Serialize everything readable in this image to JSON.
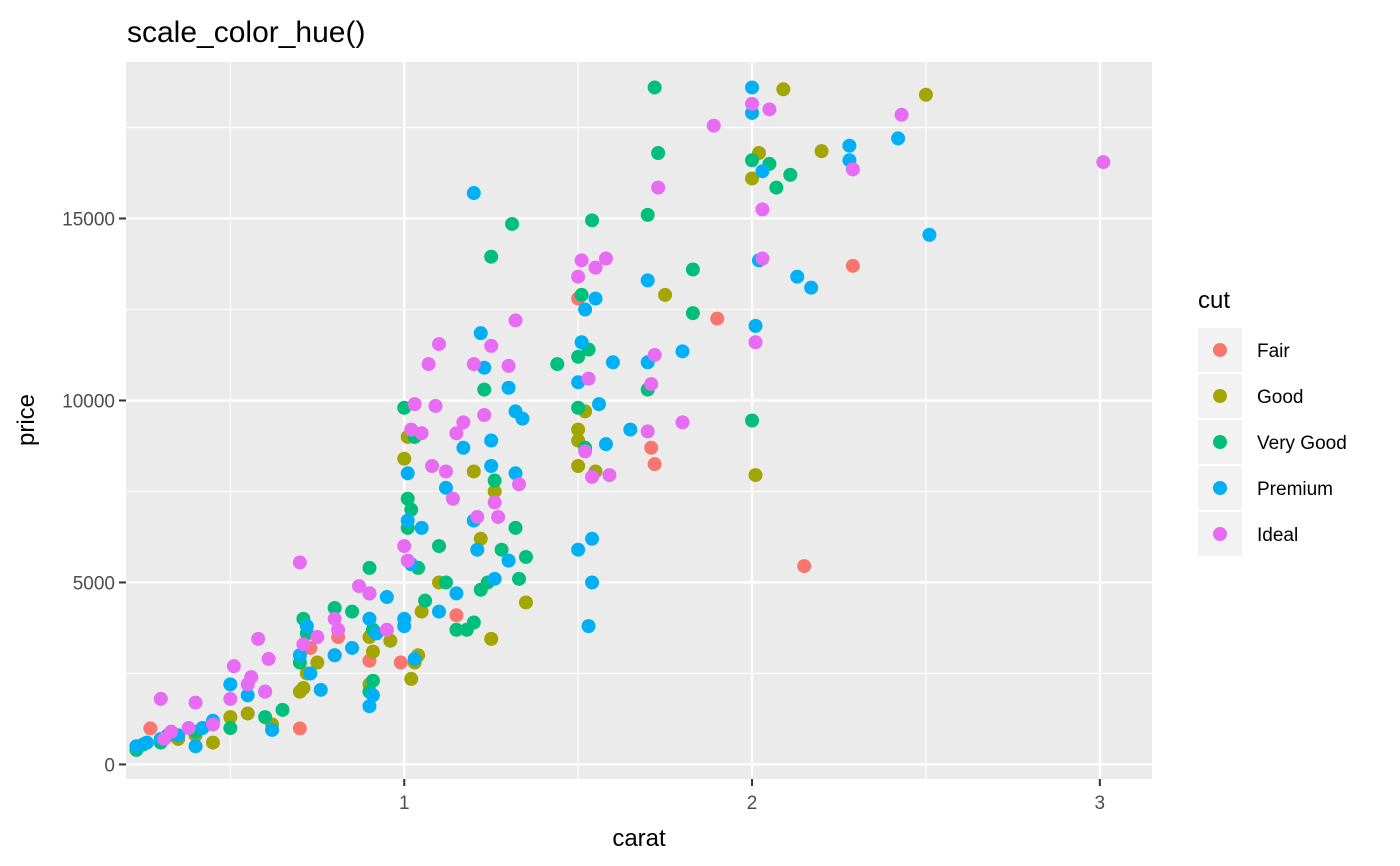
{
  "chart_data": {
    "type": "scatter",
    "title": "scale_color_hue()",
    "xlabel": "carat",
    "ylabel": "price",
    "xlim": [
      0.2,
      3.15
    ],
    "ylim": [
      -400,
      19300
    ],
    "x_ticks": [
      1,
      2,
      3
    ],
    "y_ticks": [
      0,
      5000,
      10000,
      15000
    ],
    "grid": true,
    "legend": {
      "title": "cut",
      "position": "right"
    },
    "series": [
      {
        "name": "Fair",
        "color": "#F8766D",
        "points": [
          [
            0.27,
            990
          ],
          [
            0.34,
            780
          ],
          [
            0.9,
            2850
          ],
          [
            0.99,
            2800
          ],
          [
            0.7,
            990
          ],
          [
            0.9,
            4000
          ],
          [
            1.5,
            12800
          ],
          [
            1.9,
            12250
          ],
          [
            2.29,
            13700
          ],
          [
            1.71,
            8700
          ],
          [
            1.72,
            8250
          ],
          [
            2.15,
            5450
          ],
          [
            1.15,
            4100
          ],
          [
            0.81,
            3500
          ],
          [
            0.73,
            3200
          ]
        ]
      },
      {
        "name": "Good",
        "color": "#A3A500",
        "points": [
          [
            0.3,
            650
          ],
          [
            0.35,
            700
          ],
          [
            0.4,
            800
          ],
          [
            0.45,
            600
          ],
          [
            0.5,
            1300
          ],
          [
            0.55,
            1400
          ],
          [
            0.62,
            1100
          ],
          [
            0.7,
            2000
          ],
          [
            0.71,
            2100
          ],
          [
            0.72,
            2500
          ],
          [
            0.75,
            2800
          ],
          [
            0.8,
            3000
          ],
          [
            0.9,
            2200
          ],
          [
            0.9,
            3500
          ],
          [
            0.91,
            3100
          ],
          [
            0.96,
            3400
          ],
          [
            1.0,
            8400
          ],
          [
            1.01,
            9000
          ],
          [
            1.02,
            2350
          ],
          [
            1.03,
            2800
          ],
          [
            1.04,
            3000
          ],
          [
            1.05,
            4200
          ],
          [
            1.1,
            5000
          ],
          [
            1.2,
            8050
          ],
          [
            1.22,
            6200
          ],
          [
            1.25,
            3450
          ],
          [
            1.26,
            7500
          ],
          [
            1.35,
            4450
          ],
          [
            1.5,
            8200
          ],
          [
            1.5,
            8900
          ],
          [
            1.52,
            9700
          ],
          [
            1.55,
            8050
          ],
          [
            1.75,
            12900
          ],
          [
            2.0,
            16100
          ],
          [
            2.01,
            7950
          ],
          [
            2.02,
            16800
          ],
          [
            2.09,
            18550
          ],
          [
            2.2,
            16850
          ],
          [
            2.5,
            18400
          ],
          [
            1.5,
            9200
          ]
        ]
      },
      {
        "name": "Very Good",
        "color": "#00BF7D",
        "points": [
          [
            0.23,
            400
          ],
          [
            0.25,
            550
          ],
          [
            0.3,
            600
          ],
          [
            0.32,
            800
          ],
          [
            0.4,
            900
          ],
          [
            0.5,
            1000
          ],
          [
            0.6,
            1300
          ],
          [
            0.65,
            1500
          ],
          [
            0.7,
            2800
          ],
          [
            0.71,
            4000
          ],
          [
            0.72,
            3600
          ],
          [
            0.8,
            4300
          ],
          [
            0.85,
            4200
          ],
          [
            0.9,
            5400
          ],
          [
            0.9,
            4700
          ],
          [
            0.9,
            2000
          ],
          [
            0.91,
            2300
          ],
          [
            0.91,
            3700
          ],
          [
            1.0,
            9800
          ],
          [
            1.01,
            6500
          ],
          [
            1.01,
            7300
          ],
          [
            1.02,
            7000
          ],
          [
            1.03,
            9000
          ],
          [
            1.04,
            5400
          ],
          [
            1.06,
            4500
          ],
          [
            1.1,
            6000
          ],
          [
            1.12,
            5000
          ],
          [
            1.15,
            3700
          ],
          [
            1.18,
            3700
          ],
          [
            1.2,
            3900
          ],
          [
            1.22,
            4800
          ],
          [
            1.23,
            10300
          ],
          [
            1.24,
            5000
          ],
          [
            1.25,
            13950
          ],
          [
            1.26,
            7800
          ],
          [
            1.28,
            5900
          ],
          [
            1.31,
            14850
          ],
          [
            1.32,
            6500
          ],
          [
            1.33,
            5100
          ],
          [
            1.35,
            5700
          ],
          [
            1.44,
            11000
          ],
          [
            1.5,
            9800
          ],
          [
            1.5,
            11200
          ],
          [
            1.51,
            12900
          ],
          [
            1.52,
            8700
          ],
          [
            1.53,
            11400
          ],
          [
            1.54,
            14950
          ],
          [
            1.7,
            15100
          ],
          [
            1.7,
            10300
          ],
          [
            1.72,
            18600
          ],
          [
            1.73,
            16800
          ],
          [
            1.83,
            13600
          ],
          [
            1.83,
            12400
          ],
          [
            2.0,
            16600
          ],
          [
            2.0,
            9450
          ],
          [
            2.05,
            16500
          ],
          [
            2.07,
            15850
          ],
          [
            2.11,
            16200
          ]
        ]
      },
      {
        "name": "Premium",
        "color": "#00B0F6",
        "points": [
          [
            0.23,
            500
          ],
          [
            0.26,
            600
          ],
          [
            0.3,
            700
          ],
          [
            0.35,
            800
          ],
          [
            0.4,
            500
          ],
          [
            0.42,
            1000
          ],
          [
            0.45,
            1200
          ],
          [
            0.5,
            2200
          ],
          [
            0.55,
            1900
          ],
          [
            0.6,
            2000
          ],
          [
            0.62,
            950
          ],
          [
            0.7,
            3000
          ],
          [
            0.72,
            3800
          ],
          [
            0.73,
            2500
          ],
          [
            0.76,
            2050
          ],
          [
            0.8,
            3000
          ],
          [
            0.85,
            3200
          ],
          [
            0.9,
            4000
          ],
          [
            0.9,
            1600
          ],
          [
            0.91,
            1900
          ],
          [
            0.92,
            3600
          ],
          [
            0.95,
            4600
          ],
          [
            1.0,
            4000
          ],
          [
            1.0,
            3800
          ],
          [
            1.01,
            8000
          ],
          [
            1.01,
            6700
          ],
          [
            1.02,
            5500
          ],
          [
            1.03,
            2900
          ],
          [
            1.05,
            6500
          ],
          [
            1.1,
            4200
          ],
          [
            1.12,
            7600
          ],
          [
            1.15,
            4700
          ],
          [
            1.17,
            8700
          ],
          [
            1.2,
            15700
          ],
          [
            1.2,
            6700
          ],
          [
            1.21,
            5900
          ],
          [
            1.22,
            11850
          ],
          [
            1.23,
            10900
          ],
          [
            1.25,
            8900
          ],
          [
            1.25,
            8200
          ],
          [
            1.26,
            5100
          ],
          [
            1.3,
            10350
          ],
          [
            1.3,
            5600
          ],
          [
            1.32,
            9700
          ],
          [
            1.32,
            8000
          ],
          [
            1.34,
            9500
          ],
          [
            1.5,
            10500
          ],
          [
            1.5,
            5900
          ],
          [
            1.51,
            11600
          ],
          [
            1.52,
            12500
          ],
          [
            1.53,
            3800
          ],
          [
            1.54,
            6200
          ],
          [
            1.54,
            5000
          ],
          [
            1.55,
            12800
          ],
          [
            1.56,
            9900
          ],
          [
            1.58,
            8800
          ],
          [
            1.6,
            11050
          ],
          [
            1.65,
            9200
          ],
          [
            1.7,
            11050
          ],
          [
            1.7,
            13300
          ],
          [
            1.8,
            11350
          ],
          [
            2.0,
            18600
          ],
          [
            2.0,
            17900
          ],
          [
            2.01,
            12050
          ],
          [
            2.02,
            13850
          ],
          [
            2.03,
            16300
          ],
          [
            2.13,
            13400
          ],
          [
            2.17,
            13100
          ],
          [
            2.28,
            17000
          ],
          [
            2.28,
            16600
          ],
          [
            2.42,
            17200
          ],
          [
            2.51,
            14550
          ]
        ]
      },
      {
        "name": "Ideal",
        "color": "#E76BF3",
        "points": [
          [
            0.3,
            1800
          ],
          [
            0.31,
            700
          ],
          [
            0.33,
            900
          ],
          [
            0.38,
            1000
          ],
          [
            0.4,
            1700
          ],
          [
            0.45,
            1100
          ],
          [
            0.5,
            1800
          ],
          [
            0.51,
            2700
          ],
          [
            0.55,
            2200
          ],
          [
            0.56,
            2400
          ],
          [
            0.58,
            3450
          ],
          [
            0.6,
            2000
          ],
          [
            0.61,
            2900
          ],
          [
            0.7,
            5550
          ],
          [
            0.71,
            3300
          ],
          [
            0.75,
            3500
          ],
          [
            0.8,
            4000
          ],
          [
            0.81,
            3700
          ],
          [
            0.87,
            4900
          ],
          [
            0.9,
            4700
          ],
          [
            1.0,
            6000
          ],
          [
            1.01,
            5600
          ],
          [
            1.02,
            9200
          ],
          [
            1.03,
            9900
          ],
          [
            1.05,
            9100
          ],
          [
            1.07,
            11000
          ],
          [
            1.08,
            8200
          ],
          [
            1.09,
            9850
          ],
          [
            1.1,
            11550
          ],
          [
            1.12,
            8050
          ],
          [
            1.14,
            7300
          ],
          [
            1.15,
            9100
          ],
          [
            1.17,
            9400
          ],
          [
            1.2,
            11000
          ],
          [
            1.21,
            6800
          ],
          [
            1.23,
            9600
          ],
          [
            1.25,
            11500
          ],
          [
            1.26,
            7200
          ],
          [
            1.27,
            6800
          ],
          [
            1.3,
            10950
          ],
          [
            1.32,
            12200
          ],
          [
            1.33,
            7700
          ],
          [
            1.5,
            13400
          ],
          [
            1.51,
            13850
          ],
          [
            1.52,
            8600
          ],
          [
            1.53,
            10600
          ],
          [
            1.54,
            7900
          ],
          [
            1.55,
            13650
          ],
          [
            1.58,
            13900
          ],
          [
            1.59,
            7950
          ],
          [
            1.7,
            9150
          ],
          [
            1.72,
            11250
          ],
          [
            1.73,
            15850
          ],
          [
            1.8,
            9400
          ],
          [
            1.89,
            17550
          ],
          [
            2.0,
            18150
          ],
          [
            2.01,
            11600
          ],
          [
            2.03,
            15250
          ],
          [
            2.03,
            13900
          ],
          [
            2.05,
            18000
          ],
          [
            2.29,
            16350
          ],
          [
            2.43,
            17850
          ],
          [
            3.01,
            16550
          ],
          [
            1.71,
            10450
          ],
          [
            0.95,
            3700
          ]
        ]
      }
    ]
  }
}
